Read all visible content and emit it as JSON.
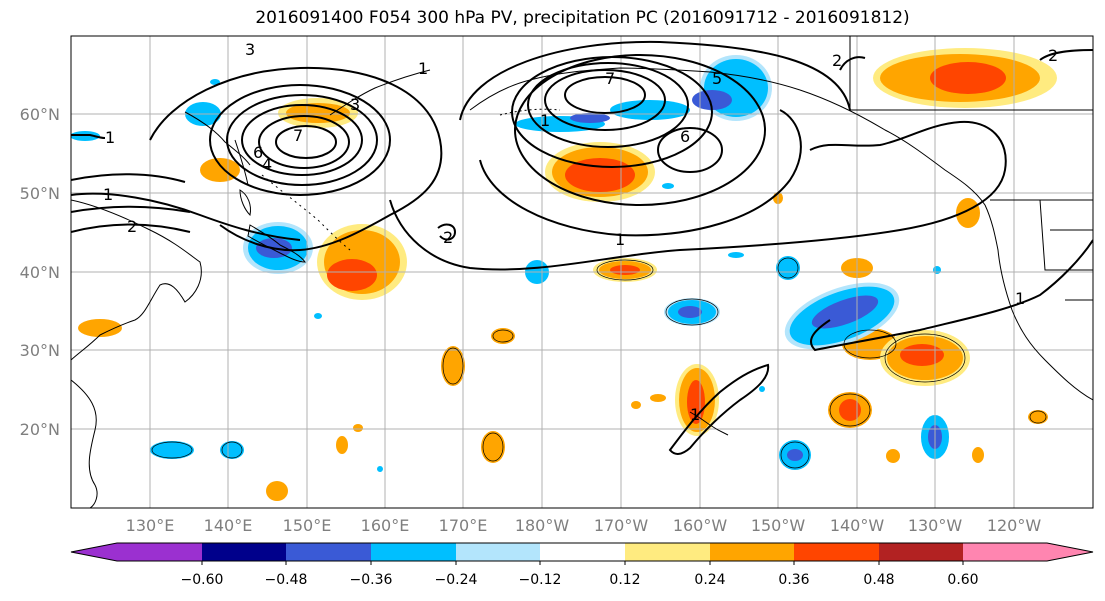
{
  "title": "2016091400 F054 300 hPa PV, precipitation PC (2016091712 - 2016091812)",
  "latitude_labels": [
    "60°N",
    "50°N",
    "40°N",
    "30°N",
    "20°N"
  ],
  "longitude_labels": [
    "130°E",
    "140°E",
    "150°E",
    "160°E",
    "170°E",
    "180°W",
    "170°W",
    "160°W",
    "150°W",
    "140°W",
    "130°W",
    "120°W"
  ],
  "colorbar": {
    "ticks": [
      "−0.60",
      "−0.48",
      "−0.36",
      "−0.24",
      "−0.12",
      "0.12",
      "0.24",
      "0.36",
      "0.48",
      "0.60"
    ],
    "colors": [
      "#9b30d0",
      "#00008b",
      "#3a5ad6",
      "#00bfff",
      "#b3e5fc",
      "#ffffff",
      "#ffeb80",
      "#ffa500",
      "#ff4500",
      "#b22222",
      "#ff85b0"
    ]
  },
  "contour_labels": {
    "c3a": "3",
    "c1a": "1",
    "c1b": "1",
    "c1c": "1",
    "c2a": "2",
    "c7a": "7",
    "c6a": "6",
    "c4a": "4",
    "c3b": "3",
    "c1d": "1",
    "c2b": "2",
    "c1e": "1",
    "c7b": "7",
    "c6b": "6",
    "c1f": "1",
    "c2c": "2",
    "c2d": "2",
    "c1g": "1",
    "c5a": "5"
  },
  "colors": {
    "neg_light": "#b3e5fc",
    "neg_1": "#00bfff",
    "neg_2": "#3a5ad6",
    "pos_light": "#ffeb80",
    "pos_1": "#ffa500",
    "pos_2": "#ff4500"
  }
}
